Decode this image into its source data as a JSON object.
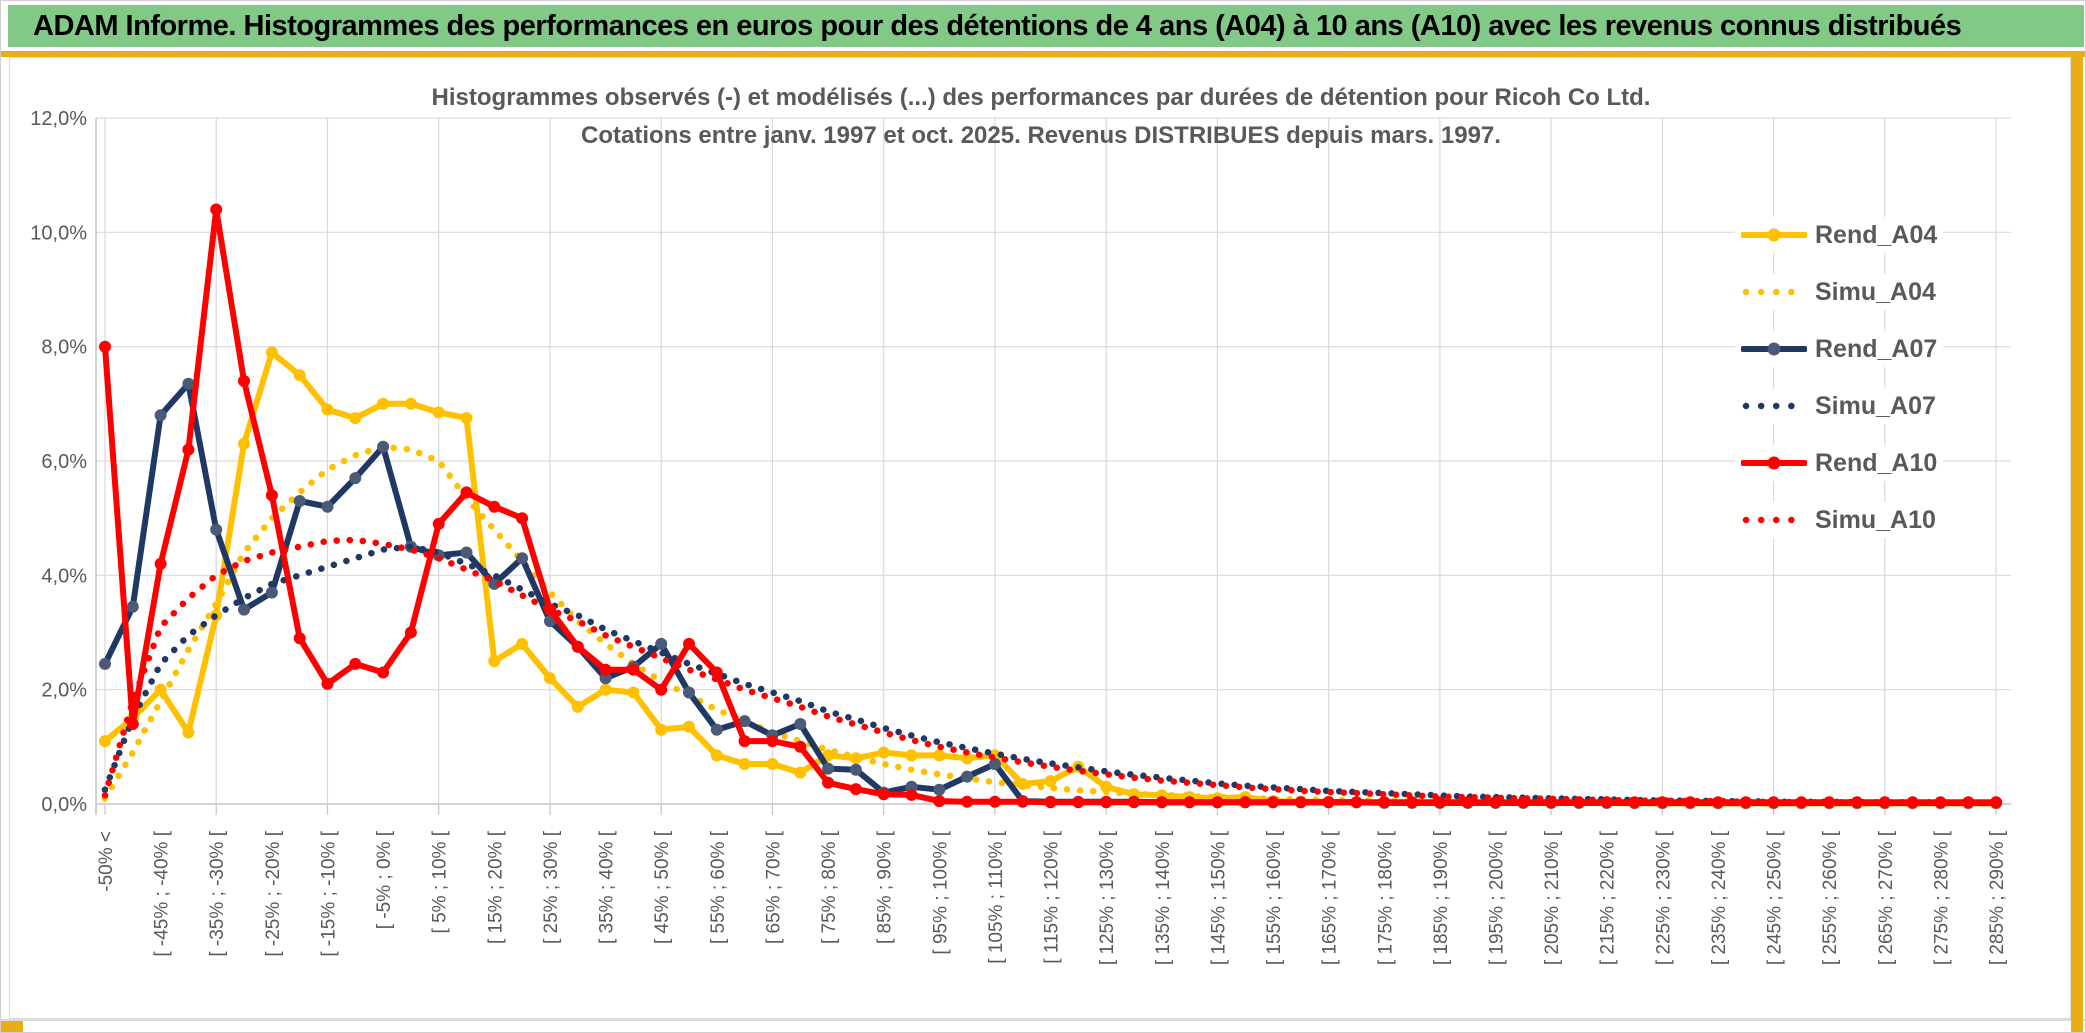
{
  "page": {
    "header_title": "ADAM Informe. Histogrammes des performances en euros pour des détentions de 4 ans (A04) à 10 ans (A10) avec les revenus connus distribués"
  },
  "chart": {
    "title_line1": "Histogrammes observés (-) et modélisés (...) des performances par durées de détention pour Ricoh Co Ltd.",
    "title_line2": "Cotations entre janv. 1997 et oct. 2025. Revenus DISTRIBUES depuis mars. 1997.",
    "y_ticks": [
      "12,0%",
      "10,0%",
      "8,0%",
      "6,0%",
      "4,0%",
      "2,0%",
      "0,0%"
    ],
    "colors": {
      "banner_green": "#82C887",
      "gold_accent": "#E9AE17",
      "series_yellow": "#FFC000",
      "series_navy": "#1F3864",
      "navy_marker": "#4A5A78",
      "series_red": "#FF0000",
      "text_gray": "#595959",
      "gridline": "#D9D9D9",
      "axis_line": "#C6C6C6"
    },
    "legend": [
      {
        "label": "Rend_A04",
        "color": "#FFC000",
        "marker": "#FFC000",
        "style": "solid"
      },
      {
        "label": "Simu_A04",
        "color": "#FFC000",
        "marker": "#FFC000",
        "style": "dotted"
      },
      {
        "label": "Rend_A07",
        "color": "#1F3864",
        "marker": "#4A5A78",
        "style": "solid"
      },
      {
        "label": "Simu_A07",
        "color": "#1F3864",
        "marker": "#1F3864",
        "style": "dotted"
      },
      {
        "label": "Rend_A10",
        "color": "#FF0000",
        "marker": "#FF0000",
        "style": "solid"
      },
      {
        "label": "Simu_A10",
        "color": "#FF0000",
        "marker": "#FF0000",
        "style": "dotted"
      }
    ]
  },
  "chart_data": {
    "type": "line",
    "title": "Histogrammes observés (-) et modélisés (...) des performances par durées de détention pour Ricoh Co Ltd. Cotations entre janv. 1997 et oct. 2025. Revenus DISTRIBUES depuis mars. 1997.",
    "xlabel": "",
    "ylabel": "",
    "ylim": [
      0,
      12
    ],
    "y_unit": "percent",
    "y_tick_step": 2,
    "grid": true,
    "legend_position": "right",
    "n_points": 69,
    "bucket_width_pct": 5,
    "x_labels_shown_every": 2,
    "x_labels": [
      "-50% <",
      "[ -45% ; -40% [",
      "[ -35% ; -30% [",
      "[ -25% ; -20% [",
      "[ -15% ; -10% [",
      "[ -5% ; 0% [",
      "[ 5% ; 10% [",
      "[ 15% ; 20% [",
      "[ 25% ; 30% [",
      "[ 35% ; 40% [",
      "[ 45% ; 50% [",
      "[ 55% ; 60% [",
      "[ 65% ; 70% [",
      "[ 75% ; 80% [",
      "[ 85% ; 90% [",
      "[ 95% ; 100% [",
      "[ 105% ; 110% [",
      "[ 115% ; 120% [",
      "[ 125% ; 130% [",
      "[ 135% ; 140% [",
      "[ 145% ; 150% [",
      "[ 155% ; 160% [",
      "[ 165% ; 170% [",
      "[ 175% ; 180% [",
      "[ 185% ; 190% [",
      "[ 195% ; 200% [",
      "[ 205% ; 210% [",
      "[ 215% ; 220% [",
      "[ 225% ; 230% [",
      "[ 235% ; 240% [",
      "[ 245% ; 250% [",
      "[ 255% ; 260% [",
      "[ 265% ; 270% [",
      "[ 275% ; 280% [",
      "[ 285% ; 290% ["
    ],
    "series": [
      {
        "name": "Rend_A04",
        "color": "#FFC000",
        "line": "solid",
        "markers": true,
        "values": [
          1.1,
          1.5,
          2.0,
          1.25,
          3.3,
          6.3,
          7.9,
          7.5,
          6.9,
          6.75,
          7.0,
          7.0,
          6.85,
          6.75,
          2.5,
          2.8,
          2.2,
          1.7,
          2.0,
          1.95,
          1.3,
          1.35,
          0.85,
          0.7,
          0.7,
          0.55,
          0.85,
          0.8,
          0.9,
          0.85,
          0.85,
          0.8,
          0.85,
          0.35,
          0.4,
          0.65,
          0.3,
          0.17,
          0.15,
          0.12,
          0.1,
          0.12,
          0.05,
          0.04,
          0.04,
          0.03,
          0.03,
          0.03,
          0.02,
          0.02,
          0.02,
          0.02,
          0.02,
          0.02,
          0.02,
          0.01,
          0.01,
          0.01,
          0.01,
          0.01,
          0.01,
          0.01,
          0.01,
          0.01,
          0.01,
          0.01,
          0.01,
          0.01,
          0.01
        ]
      },
      {
        "name": "Simu_A04",
        "color": "#FFC000",
        "line": "dotted",
        "markers": false,
        "values": [
          0.1,
          0.9,
          1.8,
          2.7,
          3.5,
          4.4,
          5.0,
          5.45,
          5.85,
          6.1,
          6.25,
          6.2,
          6.0,
          5.35,
          4.8,
          4.25,
          3.7,
          3.2,
          2.8,
          2.45,
          2.15,
          1.9,
          1.65,
          1.45,
          1.25,
          1.1,
          0.95,
          0.82,
          0.7,
          0.6,
          0.52,
          0.45,
          0.38,
          0.33,
          0.28,
          0.24,
          0.21,
          0.18,
          0.16,
          0.14,
          0.12,
          0.11,
          0.09,
          0.08,
          0.07,
          0.06,
          0.06,
          0.05,
          0.04,
          0.04,
          0.03,
          0.03,
          0.03,
          0.02,
          0.02,
          0.02,
          0.02,
          0.01,
          0.01,
          0.01,
          0.01,
          0.01,
          0.01,
          0.01,
          0.01,
          0.01,
          0.01,
          0.01,
          0.01
        ]
      },
      {
        "name": "Rend_A07",
        "color": "#1F3864",
        "line": "solid",
        "markers": true,
        "values": [
          2.45,
          3.45,
          6.8,
          7.35,
          4.8,
          3.4,
          3.7,
          5.3,
          5.2,
          5.7,
          6.25,
          4.5,
          4.35,
          4.4,
          3.85,
          4.3,
          3.2,
          2.75,
          2.2,
          2.4,
          2.8,
          1.95,
          1.3,
          1.45,
          1.2,
          1.4,
          0.62,
          0.6,
          0.2,
          0.3,
          0.25,
          0.48,
          0.7,
          0.05,
          0.04,
          0.04,
          0.04,
          0.04,
          0.03,
          0.03,
          0.03,
          0.03,
          0.03,
          0.03,
          0.03,
          0.03,
          0.02,
          0.02,
          0.02,
          0.02,
          0.02,
          0.02,
          0.02,
          0.02,
          0.02,
          0.02,
          0.02,
          0.02,
          0.02,
          0.02,
          0.02,
          0.02,
          0.02,
          0.02,
          0.02,
          0.02,
          0.02,
          0.02,
          0.02
        ]
      },
      {
        "name": "Simu_A07",
        "color": "#1F3864",
        "line": "dotted",
        "markers": false,
        "values": [
          0.25,
          1.5,
          2.45,
          2.95,
          3.3,
          3.6,
          3.85,
          4.0,
          4.15,
          4.3,
          4.45,
          4.5,
          4.4,
          4.2,
          4.0,
          3.75,
          3.5,
          3.3,
          3.05,
          2.85,
          2.65,
          2.45,
          2.28,
          2.1,
          1.95,
          1.8,
          1.62,
          1.48,
          1.33,
          1.2,
          1.08,
          0.98,
          0.88,
          0.79,
          0.71,
          0.64,
          0.57,
          0.51,
          0.46,
          0.41,
          0.36,
          0.32,
          0.29,
          0.26,
          0.23,
          0.21,
          0.19,
          0.17,
          0.15,
          0.13,
          0.12,
          0.11,
          0.1,
          0.09,
          0.08,
          0.07,
          0.06,
          0.06,
          0.05,
          0.05,
          0.04,
          0.04,
          0.04,
          0.03,
          0.03,
          0.03,
          0.03,
          0.02,
          0.02
        ]
      },
      {
        "name": "Rend_A10",
        "color": "#FF0000",
        "line": "solid",
        "markers": true,
        "values": [
          8.0,
          1.4,
          4.2,
          6.2,
          10.4,
          7.4,
          5.4,
          2.9,
          2.1,
          2.45,
          2.3,
          3.0,
          4.9,
          5.45,
          5.2,
          5.0,
          3.4,
          2.75,
          2.35,
          2.35,
          2.0,
          2.8,
          2.3,
          1.1,
          1.1,
          1.0,
          0.37,
          0.26,
          0.17,
          0.16,
          0.05,
          0.04,
          0.04,
          0.04,
          0.03,
          0.03,
          0.03,
          0.03,
          0.03,
          0.03,
          0.03,
          0.03,
          0.03,
          0.03,
          0.03,
          0.03,
          0.03,
          0.03,
          0.03,
          0.03,
          0.03,
          0.03,
          0.03,
          0.03,
          0.03,
          0.03,
          0.03,
          0.03,
          0.03,
          0.03,
          0.03,
          0.03,
          0.03,
          0.03,
          0.03,
          0.03,
          0.03,
          0.03,
          0.03
        ]
      },
      {
        "name": "Simu_A10",
        "color": "#FF0000",
        "line": "dotted",
        "markers": false,
        "values": [
          0.15,
          1.8,
          3.1,
          3.6,
          4.0,
          4.25,
          4.4,
          4.5,
          4.6,
          4.62,
          4.55,
          4.45,
          4.3,
          4.1,
          3.9,
          3.65,
          3.4,
          3.2,
          2.95,
          2.75,
          2.55,
          2.35,
          2.18,
          2.0,
          1.85,
          1.7,
          1.53,
          1.39,
          1.25,
          1.12,
          1.0,
          0.9,
          0.81,
          0.73,
          0.65,
          0.58,
          0.52,
          0.46,
          0.41,
          0.37,
          0.33,
          0.29,
          0.26,
          0.23,
          0.21,
          0.19,
          0.17,
          0.15,
          0.13,
          0.12,
          0.11,
          0.1,
          0.09,
          0.08,
          0.07,
          0.06,
          0.06,
          0.05,
          0.05,
          0.04,
          0.04,
          0.03,
          0.03,
          0.03,
          0.02,
          0.02,
          0.02,
          0.02,
          0.02
        ]
      }
    ]
  }
}
